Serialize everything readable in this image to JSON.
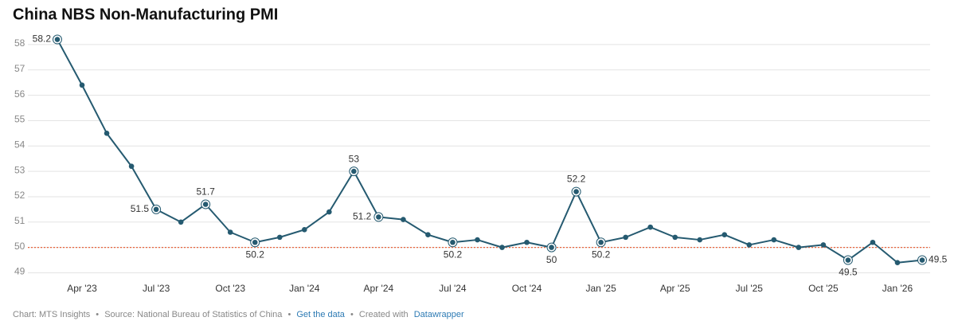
{
  "chart_data": {
    "type": "line",
    "title": "China NBS Non-Manufacturing PMI",
    "categories": [
      null,
      "Apr '23",
      null,
      null,
      "Jul '23",
      null,
      null,
      "Oct '23",
      null,
      null,
      "Jan '24",
      null,
      null,
      "Apr '24",
      null,
      null,
      "Jul '24",
      null,
      null,
      "Oct '24",
      null,
      null,
      "Jan '25",
      null,
      null,
      "Apr '25",
      null,
      null,
      "Jul '25",
      null,
      null,
      "Oct '25",
      null,
      null,
      "Jan '26",
      null
    ],
    "series": [
      {
        "name": "Non-Manufacturing PMI",
        "color": "#255a70",
        "values": [
          58.2,
          56.4,
          54.5,
          53.2,
          51.5,
          51.0,
          51.7,
          50.6,
          50.2,
          50.4,
          50.7,
          51.4,
          53.0,
          51.2,
          51.1,
          50.5,
          50.2,
          50.3,
          50.0,
          50.2,
          50.0,
          52.2,
          50.2,
          50.4,
          50.8,
          50.4,
          50.3,
          50.5,
          50.1,
          50.3,
          50.0,
          50.1,
          49.5,
          50.2,
          49.4,
          49.5
        ],
        "value_labels": [
          "58.2",
          null,
          null,
          null,
          "51.5",
          null,
          "51.7",
          null,
          "50.2",
          null,
          null,
          null,
          "53",
          "51.2",
          null,
          null,
          "50.2",
          null,
          null,
          null,
          "50",
          "52.2",
          "50.2",
          null,
          null,
          null,
          null,
          null,
          null,
          null,
          null,
          null,
          "49.5",
          null,
          null,
          "49.5"
        ]
      }
    ],
    "ylim": [
      48.7,
      58.5
    ],
    "yticks": [
      49,
      50,
      51,
      52,
      53,
      54,
      55,
      56,
      57,
      58
    ],
    "grid": true,
    "reference_line": {
      "value": 50,
      "color": "#e8643c"
    },
    "footer": {
      "credit": "Chart: MTS Insights",
      "separator": "•",
      "source": "Source: National Bureau of Statistics of China",
      "data_link": "Get the data",
      "created": "Created with",
      "tool": "Datawrapper"
    }
  }
}
